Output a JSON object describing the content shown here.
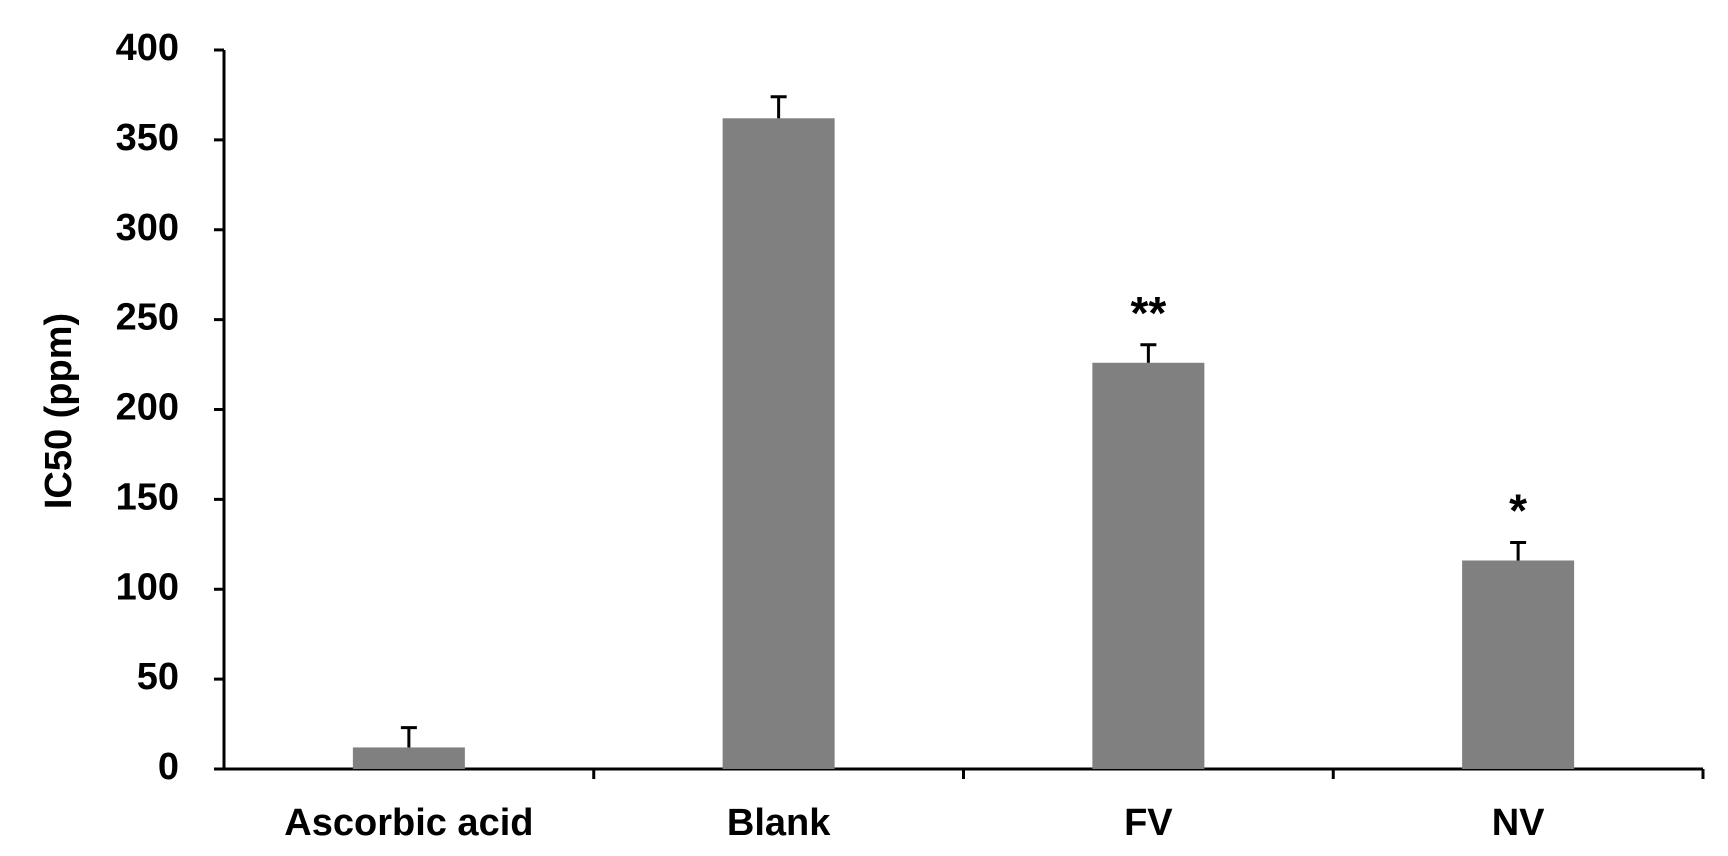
{
  "chart_data": {
    "type": "bar",
    "y_label": "IC50 (ppm)",
    "categories": [
      "Ascorbic acid",
      "Blank",
      "FV",
      "NV"
    ],
    "values": [
      12,
      362,
      226,
      116
    ],
    "errors": [
      11,
      12,
      10,
      10
    ],
    "color": "#808080",
    "ylim": [
      0,
      400
    ],
    "yticks": [
      0,
      50,
      100,
      150,
      200,
      250,
      300,
      350,
      400
    ],
    "grid": false,
    "annotations": [
      {
        "text": "**",
        "category": "FV"
      },
      {
        "text": "*",
        "category": "NV"
      }
    ]
  }
}
